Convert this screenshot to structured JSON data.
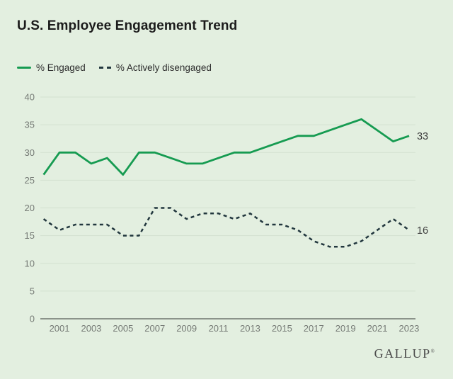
{
  "header": {
    "title": "U.S. Employee Engagement Trend"
  },
  "brand": {
    "name": "GALLUP",
    "mark": "®"
  },
  "colors": {
    "background": "#e3efe0",
    "gridline": "#d3e1d0",
    "axis_line": "#6e756e",
    "tick_label": "#757a75",
    "title": "#1b1b1b",
    "legend_text": "#2d2d2d",
    "end_label": "#3f3f3f",
    "brand": "#4c4c4c",
    "engaged_green": "#169b51",
    "disengaged_dark": "#22373e"
  },
  "chart_data": {
    "type": "line",
    "title": "U.S. Employee Engagement Trend",
    "xlabel": "",
    "ylabel": "",
    "ylim": [
      0,
      40
    ],
    "y_ticks": [
      0,
      5,
      10,
      15,
      20,
      25,
      30,
      35,
      40
    ],
    "grid": "horizontal",
    "legend_position": "top-left",
    "x": [
      2000,
      2001,
      2002,
      2003,
      2004,
      2005,
      2006,
      2007,
      2008,
      2009,
      2010,
      2011,
      2012,
      2013,
      2014,
      2015,
      2016,
      2017,
      2018,
      2019,
      2020,
      2021,
      2022,
      2023
    ],
    "x_tick_labels": [
      "2001",
      "2003",
      "2005",
      "2007",
      "2009",
      "2011",
      "2013",
      "2015",
      "2017",
      "2019",
      "2021",
      "2023"
    ],
    "series": [
      {
        "name": "% Engaged",
        "style": "solid",
        "color": "#169b51",
        "values": [
          26,
          30,
          30,
          28,
          29,
          26,
          30,
          30,
          29,
          28,
          28,
          29,
          30,
          30,
          31,
          32,
          33,
          33,
          34,
          35,
          36,
          34,
          32,
          33
        ],
        "end_label": "33"
      },
      {
        "name": "% Actively disengaged",
        "style": "dashed",
        "color": "#22373e",
        "values": [
          18,
          16,
          17,
          17,
          17,
          15,
          15,
          20,
          20,
          18,
          19,
          19,
          18,
          19,
          17,
          17,
          16,
          14,
          13,
          13,
          14,
          16,
          18,
          16
        ],
        "end_label": "16"
      }
    ]
  }
}
